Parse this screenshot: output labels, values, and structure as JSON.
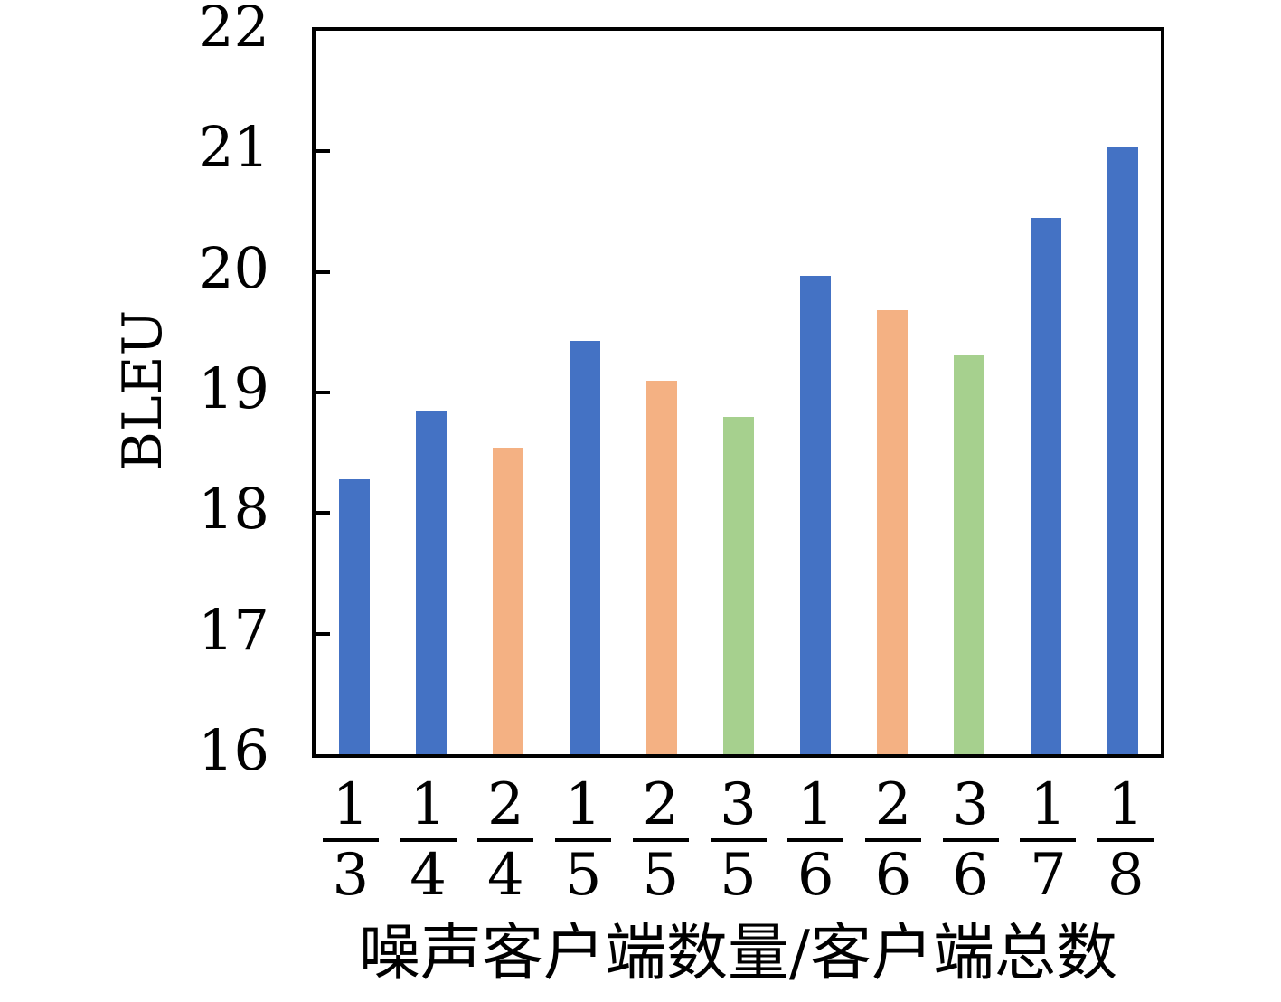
{
  "palette": {
    "blue": "#4472C4",
    "orange": "#F4B183",
    "green": "#A6D08E",
    "axis": "#000000",
    "background": "#FFFFFF"
  },
  "chart_data": {
    "type": "bar",
    "title": "",
    "xlabel": "噪声客户端数量/客户端总数",
    "ylabel": "BLEU",
    "categories": [
      "1/3",
      "1/4",
      "2/4",
      "1/5",
      "2/5",
      "3/5",
      "1/6",
      "2/6",
      "3/6",
      "1/7",
      "1/8"
    ],
    "fractions": [
      {
        "numerator": "1",
        "denominator": "3"
      },
      {
        "numerator": "1",
        "denominator": "4"
      },
      {
        "numerator": "2",
        "denominator": "4"
      },
      {
        "numerator": "1",
        "denominator": "5"
      },
      {
        "numerator": "2",
        "denominator": "5"
      },
      {
        "numerator": "3",
        "denominator": "5"
      },
      {
        "numerator": "1",
        "denominator": "6"
      },
      {
        "numerator": "2",
        "denominator": "6"
      },
      {
        "numerator": "3",
        "denominator": "6"
      },
      {
        "numerator": "1",
        "denominator": "7"
      },
      {
        "numerator": "1",
        "denominator": "8"
      }
    ],
    "values": [
      18.28,
      18.85,
      18.54,
      19.43,
      19.1,
      18.8,
      19.97,
      19.68,
      19.31,
      20.45,
      21.03
    ],
    "bar_colors": [
      "blue",
      "blue",
      "orange",
      "blue",
      "orange",
      "green",
      "blue",
      "orange",
      "green",
      "blue",
      "blue"
    ],
    "ylim": [
      16,
      22
    ],
    "yticks": [
      16,
      17,
      18,
      19,
      20,
      21,
      22
    ],
    "grid": false,
    "legend": false
  }
}
